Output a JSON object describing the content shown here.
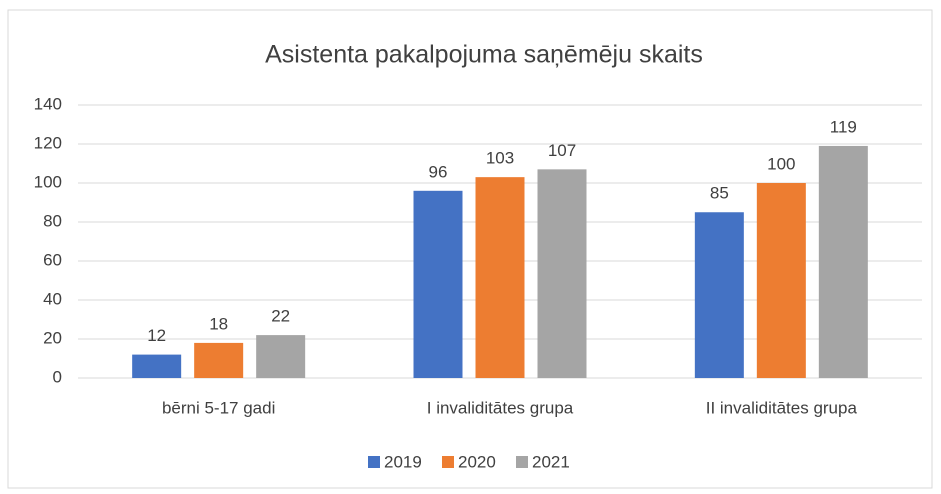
{
  "chart_data": {
    "type": "bar",
    "title": "Asistenta pakalpojuma saņēmēju skaits",
    "categories": [
      "bērni 5-17 gadi",
      "I invaliditātes grupa",
      "II invaliditātes grupa"
    ],
    "series": [
      {
        "name": "2019",
        "color": "#4472c4",
        "values": [
          12,
          96,
          85
        ]
      },
      {
        "name": "2020",
        "color": "#ed7d31",
        "values": [
          18,
          103,
          100
        ]
      },
      {
        "name": "2021",
        "color": "#a5a5a5",
        "values": [
          22,
          107,
          119
        ]
      }
    ],
    "ylim": [
      0,
      140
    ],
    "yticks": [
      0,
      20,
      40,
      60,
      80,
      100,
      120,
      140
    ],
    "grid": true,
    "legend": "bottom"
  }
}
